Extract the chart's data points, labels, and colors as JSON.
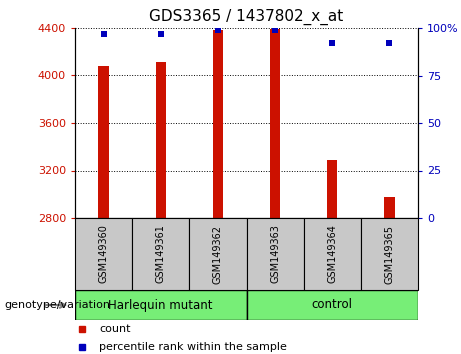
{
  "title": "GDS3365 / 1437802_x_at",
  "samples": [
    "GSM149360",
    "GSM149361",
    "GSM149362",
    "GSM149363",
    "GSM149364",
    "GSM149365"
  ],
  "counts": [
    4080,
    4110,
    4380,
    4390,
    3290,
    2980
  ],
  "percentile_ranks": [
    97,
    97,
    99,
    99,
    92,
    92
  ],
  "ylim_left": [
    2800,
    4400
  ],
  "ylim_right": [
    0,
    100
  ],
  "yticks_left": [
    2800,
    3200,
    3600,
    4000,
    4400
  ],
  "yticks_right": [
    0,
    25,
    50,
    75,
    100
  ],
  "bar_color": "#CC1100",
  "dot_color": "#0000BB",
  "bar_width": 0.18,
  "background_color": "#ffffff",
  "left_tick_color": "#CC1100",
  "right_tick_color": "#0000BB",
  "sample_box_color": "#C8C8C8",
  "group_color": "#77EE77",
  "genotype_label": "genotype/variation",
  "group_labels": [
    "Harlequin mutant",
    "control"
  ],
  "legend_count_label": "count",
  "legend_percentile_label": "percentile rank within the sample",
  "title_fontsize": 11,
  "tick_fontsize": 8,
  "label_fontsize": 8,
  "legend_fontsize": 8
}
